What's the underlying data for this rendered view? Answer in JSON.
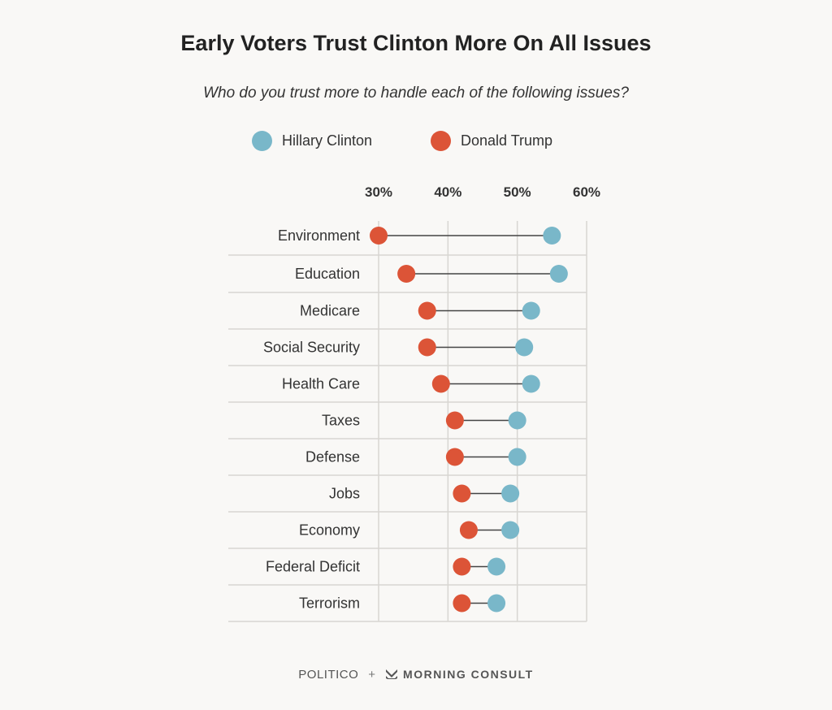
{
  "chart_data": {
    "type": "dumbbell",
    "title": "Early Voters Trust Clinton More On All Issues",
    "subtitle": "Who do you trust more to handle each of the following issues?",
    "x_ticks": [
      "30%",
      "40%",
      "50%",
      "60%"
    ],
    "xlim": [
      30,
      60
    ],
    "grid": true,
    "legend_position": "top",
    "categories": [
      "Environment",
      "Education",
      "Medicare",
      "Social Security",
      "Health Care",
      "Taxes",
      "Defense",
      "Jobs",
      "Economy",
      "Federal Deficit",
      "Terrorism"
    ],
    "series": [
      {
        "name": "Hillary Clinton",
        "color": "#79b7c9",
        "values": [
          55,
          56,
          52,
          51,
          52,
          50,
          50,
          49,
          49,
          47,
          47
        ]
      },
      {
        "name": "Donald Trump",
        "color": "#dc5437",
        "values": [
          30,
          34,
          37,
          37,
          39,
          41,
          41,
          42,
          43,
          42,
          42
        ]
      }
    ]
  },
  "footer": {
    "politico": "POLITICO",
    "plus": "+",
    "morning_consult": "MORNING CONSULT"
  }
}
